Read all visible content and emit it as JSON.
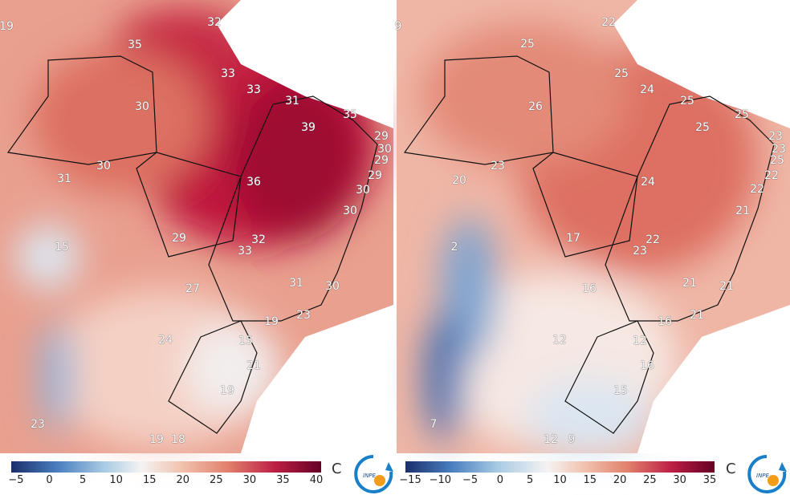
{
  "panels": [
    {
      "labels": [
        "19",
        "32",
        "35",
        "33",
        "33",
        "30",
        "31",
        "39",
        "35",
        "29",
        "30",
        "29",
        "29",
        "30",
        "30",
        "31",
        "36",
        "30",
        "29",
        "32",
        "33",
        "15",
        "31",
        "30",
        "27",
        "19",
        "23",
        "24",
        "15",
        "21",
        "19",
        "23",
        "19",
        "18"
      ],
      "colorbar": {
        "ticks": [
          "−5",
          "0",
          "5",
          "10",
          "15",
          "20",
          "25",
          "30",
          "35",
          "40"
        ],
        "unit": "C"
      }
    },
    {
      "labels": [
        "9",
        "22",
        "25",
        "25",
        "24",
        "25",
        "26",
        "25",
        "25",
        "23",
        "23",
        "25",
        "22",
        "22",
        "23",
        "20",
        "24",
        "21",
        "17",
        "22",
        "23",
        "2",
        "21",
        "21",
        "16",
        "16",
        "21",
        "12",
        "12",
        "16",
        "15",
        "7",
        "12",
        "9"
      ],
      "colorbar": {
        "ticks": [
          "−15",
          "−10",
          "−5",
          "0",
          "5",
          "10",
          "15",
          "20",
          "25",
          "30",
          "35"
        ],
        "unit": "C"
      }
    }
  ],
  "logo": {
    "text": "INPE"
  },
  "colors": {
    "cold": "#1f3a7a",
    "neutral": "#f7f4f2",
    "warm": "#e58a78",
    "hot": "#b0103a",
    "hottest": "#6a0020"
  }
}
